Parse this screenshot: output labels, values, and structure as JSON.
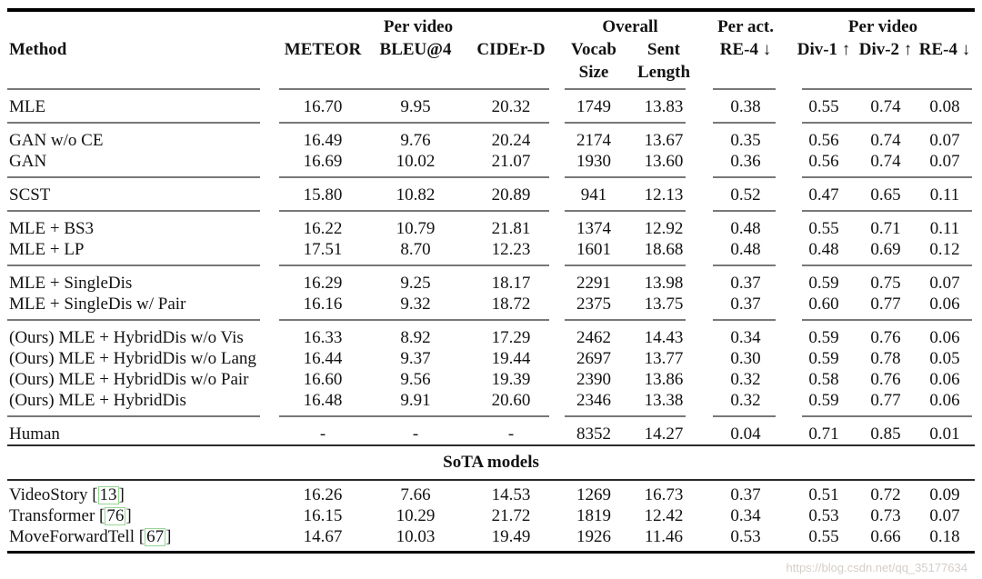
{
  "colors": {
    "citation_box": "#96d693",
    "rule_gray": "#787878",
    "rule_dark": "#2b2b2b",
    "watermark_gray": "#cdc6c0"
  },
  "header": {
    "groups": [
      {
        "label": ""
      },
      {
        "label": "Per video"
      },
      {
        "label": "Overall"
      },
      {
        "label": "Per act."
      },
      {
        "label": "Per video"
      }
    ],
    "columns": [
      "Method",
      "METEOR",
      "BLEU@4",
      "CIDEr-D",
      "Vocab\nSize",
      "Sent\nLength",
      "RE-4 ↓",
      "Div-1 ↑",
      "Div-2 ↑",
      "RE-4 ↓"
    ]
  },
  "body": [
    {
      "type": "sep"
    },
    {
      "type": "row",
      "method": "MLE",
      "values": [
        "16.70",
        "9.95",
        "20.32",
        "1749",
        "13.83",
        "0.38",
        "0.55",
        "0.74",
        "0.08"
      ]
    },
    {
      "type": "sep"
    },
    {
      "type": "row",
      "method": "GAN w/o CE",
      "values": [
        "16.49",
        "9.76",
        "20.24",
        "2174",
        "13.67",
        "0.35",
        "0.56",
        "0.74",
        "0.07"
      ]
    },
    {
      "type": "row",
      "method": "GAN",
      "values": [
        "16.69",
        "10.02",
        "21.07",
        "1930",
        "13.60",
        "0.36",
        "0.56",
        "0.74",
        "0.07"
      ]
    },
    {
      "type": "sep"
    },
    {
      "type": "row",
      "method": "SCST",
      "values": [
        "15.80",
        "10.82",
        "20.89",
        "941",
        "12.13",
        "0.52",
        "0.47",
        "0.65",
        "0.11"
      ]
    },
    {
      "type": "sep"
    },
    {
      "type": "row",
      "method": "MLE + BS3",
      "values": [
        "16.22",
        "10.79",
        "21.81",
        "1374",
        "12.92",
        "0.48",
        "0.55",
        "0.71",
        "0.11"
      ]
    },
    {
      "type": "row",
      "method": "MLE + LP",
      "values": [
        "17.51",
        "8.70",
        "12.23",
        "1601",
        "18.68",
        "0.48",
        "0.48",
        "0.69",
        "0.12"
      ]
    },
    {
      "type": "sep"
    },
    {
      "type": "row",
      "method": "MLE + SingleDis",
      "values": [
        "16.29",
        "9.25",
        "18.17",
        "2291",
        "13.98",
        "0.37",
        "0.59",
        "0.75",
        "0.07"
      ]
    },
    {
      "type": "row",
      "method": "MLE + SingleDis w/ Pair",
      "values": [
        "16.16",
        "9.32",
        "18.72",
        "2375",
        "13.75",
        "0.37",
        "0.60",
        "0.77",
        "0.06"
      ]
    },
    {
      "type": "sep"
    },
    {
      "type": "row",
      "method": "(Ours) MLE + HybridDis w/o Vis",
      "values": [
        "16.33",
        "8.92",
        "17.29",
        "2462",
        "14.43",
        "0.34",
        "0.59",
        "0.76",
        "0.06"
      ]
    },
    {
      "type": "row",
      "method": "(Ours) MLE + HybridDis w/o Lang",
      "values": [
        "16.44",
        "9.37",
        "19.44",
        "2697",
        "13.77",
        "0.30",
        "0.59",
        "0.78",
        "0.05"
      ]
    },
    {
      "type": "row",
      "method": "(Ours) MLE + HybridDis w/o Pair",
      "values": [
        "16.60",
        "9.56",
        "19.39",
        "2390",
        "13.86",
        "0.32",
        "0.58",
        "0.76",
        "0.06"
      ]
    },
    {
      "type": "row",
      "method": "(Ours) MLE + HybridDis",
      "values": [
        "16.48",
        "9.91",
        "20.60",
        "2346",
        "13.38",
        "0.32",
        "0.59",
        "0.77",
        "0.06"
      ]
    },
    {
      "type": "sep"
    },
    {
      "type": "row",
      "method": "Human",
      "values": [
        "-",
        "-",
        "-",
        "8352",
        "14.27",
        "0.04",
        "0.71",
        "0.85",
        "0.01"
      ]
    },
    {
      "type": "section",
      "label": "SoTA models"
    },
    {
      "type": "pad"
    },
    {
      "type": "row",
      "method": "VideoStory",
      "cite": "13",
      "values": [
        "16.26",
        "7.66",
        "14.53",
        "1269",
        "16.73",
        "0.37",
        "0.51",
        "0.72",
        "0.09"
      ]
    },
    {
      "type": "row",
      "method": "Transformer",
      "cite": "76",
      "values": [
        "16.15",
        "10.29",
        "21.72",
        "1819",
        "12.42",
        "0.34",
        "0.53",
        "0.73",
        "0.07"
      ]
    },
    {
      "type": "row",
      "method": "MoveForwardTell",
      "cite": "67",
      "values": [
        "14.67",
        "10.03",
        "19.49",
        "1926",
        "11.46",
        "0.53",
        "0.55",
        "0.66",
        "0.18"
      ]
    },
    {
      "type": "pad"
    }
  ],
  "watermark": "https://blog.csdn.net/qq_35177634"
}
